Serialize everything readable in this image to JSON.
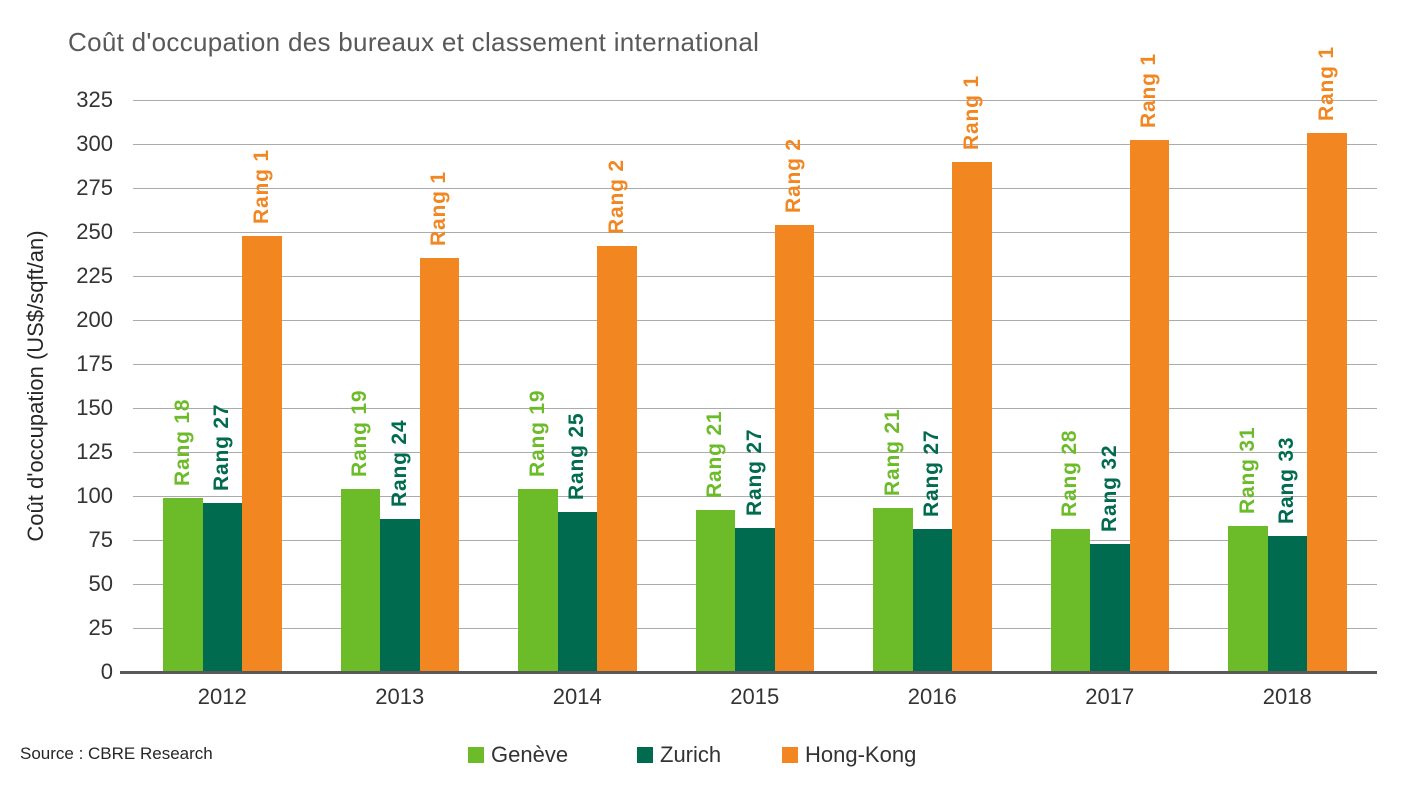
{
  "title": "Coût d'occupation des bureaux et classement international",
  "source_note": "Source : CBRE Research",
  "chart_data": {
    "type": "bar",
    "title": "Coût d'occupation des bureaux et classement international",
    "ylabel": "Coût d'occupation (US$/sqft/an)",
    "xlabel": "",
    "categories": [
      "2012",
      "2013",
      "2014",
      "2015",
      "2016",
      "2017",
      "2018"
    ],
    "series": [
      {
        "name": "Genève",
        "color": "#6CBB29",
        "values": [
          99,
          104,
          104,
          92,
          93,
          81,
          83
        ],
        "bar_labels": [
          "Rang 18",
          "Rang 19",
          "Rang 19",
          "Rang 21",
          "Rang 21",
          "Rang 28",
          "Rang 31"
        ]
      },
      {
        "name": "Zurich",
        "color": "#006B4E",
        "values": [
          96,
          87,
          91,
          82,
          81,
          73,
          77
        ],
        "bar_labels": [
          "Rang 27",
          "Rang 24",
          "Rang 25",
          "Rang 27",
          "Rang 27",
          "Rang 32",
          "Rang 33"
        ]
      },
      {
        "name": "Hong-Kong",
        "color": "#F28722",
        "values": [
          248,
          235,
          242,
          254,
          290,
          302,
          306
        ],
        "bar_labels": [
          "Rang 1",
          "Rang 1",
          "Rang 2",
          "Rang 2",
          "Rang 1",
          "Rang 1",
          "Rang 1"
        ]
      }
    ],
    "ylim": [
      0,
      325
    ],
    "ytick_step": 25,
    "grid": true,
    "legend_position": "bottom"
  }
}
